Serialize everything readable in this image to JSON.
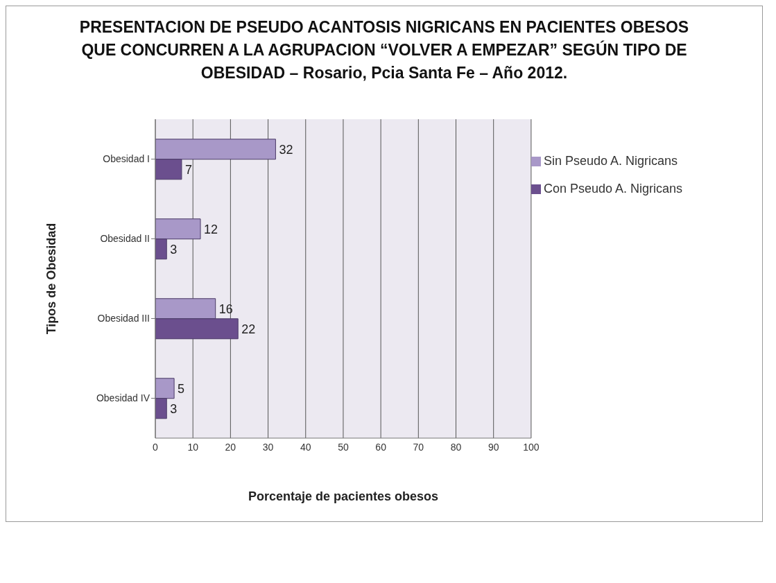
{
  "chart_data": {
    "type": "bar",
    "orientation": "horizontal",
    "title": "PRESENTACION DE PSEUDO ACANTOSIS NIGRICANS EN PACIENTES OBESOS QUE CONCURREN A LA AGRUPACION “VOLVER A EMPEZAR” SEGÚN  TIPO DE OBESIDAD – Rosario, Pcia Santa Fe – Año 2012.",
    "xlabel": "Porcentaje de pacientes obesos",
    "ylabel": "Tipos de Obesidad",
    "categories": [
      "Obesidad I",
      "Obesidad II",
      "Obesidad III",
      "Obesidad IV"
    ],
    "series": [
      {
        "name": "Sin Pseudo A. Nigricans",
        "color": "#a898c8",
        "values": [
          32,
          12,
          16,
          5
        ]
      },
      {
        "name": "Con Pseudo A. Nigricans",
        "color": "#6b4f8e",
        "values": [
          7,
          3,
          22,
          3
        ]
      }
    ],
    "xlim": [
      0,
      100
    ],
    "xticks": [
      0,
      10,
      20,
      30,
      40,
      50,
      60,
      70,
      80,
      90,
      100
    ],
    "grid": "x",
    "legend": "top right",
    "data_labels": true
  }
}
